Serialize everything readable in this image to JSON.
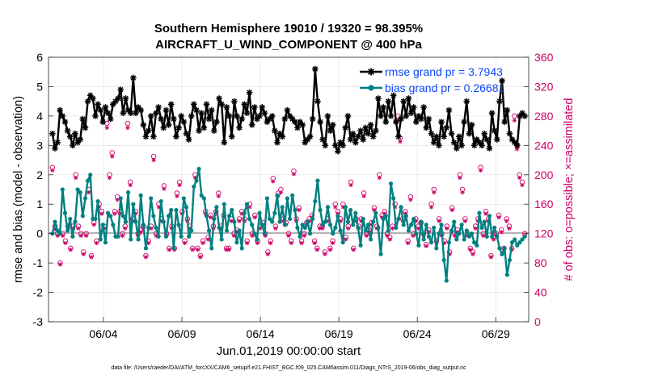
{
  "chart_data": {
    "type": "line",
    "title": "Southern Hemisphere 19010 / 19320 = 98.395%",
    "subtitle": "AIRCRAFT_U_WIND_COMPONENT @ 400 hPa",
    "xlabel": "Jun.01,2019 00:00:00 start",
    "ylabel": "rmse and bias (model - observation)",
    "y2label": "# of obs: o=possible; ×=assimilated",
    "xlim": [
      0,
      30.6
    ],
    "ylim": [
      -3,
      6
    ],
    "y2lim": [
      0,
      360
    ],
    "xtick_values": [
      3.5,
      8.5,
      13.5,
      18.5,
      23.5,
      28.5
    ],
    "xtick_labels": [
      "06/04",
      "06/09",
      "06/14",
      "06/19",
      "06/24",
      "06/29"
    ],
    "ytick_labels": [
      "-3",
      "-2",
      "-1",
      "0",
      "1",
      "2",
      "3",
      "4",
      "5",
      "6"
    ],
    "y2tick_labels": [
      "0",
      "40",
      "80",
      "120",
      "160",
      "200",
      "240",
      "280",
      "320",
      "360"
    ],
    "footnote": "data file: /Users/raeder/DAI/ATM_forcXX/CAM6_setup/f.e21.FHIST_BGC.f09_025.CAM6assim.011/Diags_NTrS_2019-06/obs_diag_output.nc",
    "colors": {
      "rmse": "#000000",
      "bias": "#008080",
      "obs": "#cc0066",
      "zero_line": "#b3b3b3",
      "legend_text": "#0d47ff"
    },
    "series": [
      {
        "name": "rmse grand pr = 3.7943",
        "marker": "asterisk",
        "values": [
          3.4,
          2.9,
          3.1,
          4.2,
          4.0,
          3.8,
          3.5,
          3.3,
          3.0,
          3.4,
          3.1,
          3.2,
          3.9,
          3.6,
          4.5,
          4.7,
          4.6,
          4.0,
          4.4,
          4.2,
          3.8,
          4.3,
          4.1,
          3.9,
          4.4,
          4.5,
          4.6,
          4.9,
          4.1,
          4.6,
          4.2,
          4.1,
          5.3,
          4.1,
          4.3,
          4.2,
          3.7,
          3.3,
          3.5,
          4.0,
          3.3,
          4.1,
          4.3,
          3.9,
          3.6,
          4.2,
          3.7,
          4.4,
          3.9,
          3.3,
          3.6,
          4.0,
          3.8,
          3.4,
          3.2,
          4.0,
          4.4,
          4.2,
          3.5,
          4.1,
          3.6,
          4.4,
          3.9,
          4.2,
          3.5,
          3.8,
          4.6,
          4.4,
          3.1,
          4.3,
          4.0,
          3.3,
          4.5,
          4.0,
          3.6,
          3.9,
          4.4,
          4.1,
          4.8,
          3.7,
          4.3,
          3.9,
          4.0,
          4.3,
          4.1,
          3.8,
          3.9,
          4.0,
          3.5,
          3.1,
          3.4,
          3.3,
          3.9,
          4.2,
          4.0,
          3.9,
          3.8,
          3.6,
          3.8,
          3.7,
          3.1,
          3.2,
          3.3,
          3.9,
          5.6,
          4.5,
          3.8,
          3.2,
          3.0,
          4.0,
          3.5,
          3.7,
          3.0,
          2.8,
          3.1,
          3.0,
          3.6,
          4.0,
          3.2,
          3.4,
          3.1,
          3.3,
          3.5,
          3.2,
          3.6,
          3.4,
          3.7,
          3.3,
          3.5,
          4.6,
          4.0,
          4.3,
          3.8,
          4.5,
          4.0,
          4.7,
          3.8,
          3.3,
          3.9,
          4.5,
          4.0,
          4.6,
          4.1,
          4.3,
          3.8,
          4.0,
          3.9,
          4.3,
          3.6,
          3.9,
          3.4,
          3.1,
          3.3,
          3.0,
          3.8,
          3.3,
          3.6,
          4.2,
          3.4,
          3.1,
          2.9,
          3.3,
          3.0,
          3.8,
          4.5,
          3.4,
          3.7,
          3.0,
          3.2,
          3.1,
          3.0,
          3.4,
          3.2,
          2.9,
          4.1,
          3.5,
          3.2,
          4.5,
          5.2,
          3.8,
          4.2,
          3.4,
          3.2,
          3.1,
          3.0,
          4.0,
          4.1,
          4.0
        ]
      },
      {
        "name": "bias grand pr = 0.26681",
        "marker": "dot",
        "values": [
          0.0,
          0.4,
          0.1,
          0.0,
          1.5,
          0.7,
          0.1,
          0.5,
          -0.1,
          0.4,
          1.5,
          1.4,
          0.6,
          1.2,
          1.8,
          2.0,
          0.5,
          0.5,
          1.1,
          -0.2,
          0.3,
          -0.3,
          0.7,
          0.6,
          0.3,
          -0.1,
          -0.1,
          1.2,
          0.6,
          0.4,
          1.4,
          -0.2,
          1.0,
          0.4,
          -0.2,
          1.3,
          0.3,
          -0.5,
          0.2,
          1.2,
          0.6,
          0.2,
          -0.1,
          1.1,
          0.4,
          -0.1,
          0.6,
          0.8,
          -0.5,
          0.8,
          0.3,
          -0.1,
          1.2,
          0.9,
          -0.1,
          0.1,
          1.6,
          1.8,
          2.2,
          1.3,
          1.2,
          0.6,
          0.1,
          -0.5,
          0.5,
          0.9,
          0.2,
          -0.2,
          1.0,
          0.1,
          0.6,
          0.8,
          0.4,
          -0.3,
          0.1,
          -0.5,
          0.7,
          1.0,
          0.5,
          0.3,
          0.0,
          -0.2,
          0.7,
          0.3,
          0.0,
          1.2,
          0.5,
          0.4,
          0.7,
          1.3,
          0.4,
          0.9,
          0.3,
          1.2,
          0.5,
          1.3,
          0.8,
          0.2,
          -0.1,
          0.3,
          0.2,
          0.4,
          0.0,
          0.5,
          1.1,
          1.8,
          0.8,
          0.3,
          0.4,
          0.9,
          0.3,
          0.0,
          0.2,
          0.6,
          0.1,
          -0.3,
          0.9,
          0.4,
          0.8,
          0.3,
          0.7,
          0.2,
          -0.4,
          0.5,
          0.1,
          0.3,
          -0.2,
          0.4,
          0.7,
          0.2,
          -0.7,
          0.5,
          0.6,
          0.1,
          1.7,
          1.2,
          0.2,
          0.5,
          0.9,
          0.3,
          0.6,
          0.1,
          0.3,
          0.5,
          0.0,
          -0.4,
          0.4,
          -0.2,
          0.3,
          -0.1,
          -0.3,
          0.2,
          -0.5,
          0.0,
          0.3,
          -0.9,
          -1.6,
          -0.3,
          0.1,
          0.4,
          -0.2,
          0.0,
          0.3,
          -0.2,
          0.1,
          -0.1,
          0.0,
          -0.3,
          -0.4,
          0.7,
          0.2,
          0.4,
          -0.1,
          0.6,
          -0.1,
          0.2,
          -0.1,
          -0.5,
          -0.7,
          -0.5,
          -1.4,
          -0.9,
          -0.3,
          -0.2,
          -0.4,
          -0.3,
          -0.2,
          -0.1
        ]
      }
    ],
    "obs_count": {
      "name": "# of obs",
      "possible": [
        210,
        130,
        120,
        80,
        120,
        110,
        130,
        100,
        130,
        200,
        130,
        120,
        95,
        120,
        180,
        90,
        135,
        110,
        160,
        150,
        130,
        270,
        200,
        230,
        150,
        170,
        150,
        120,
        130,
        270,
        190,
        140,
        150,
        120,
        125,
        130,
        90,
        110,
        130,
        225,
        120,
        160,
        140,
        185,
        120,
        100,
        130,
        100,
        175,
        190,
        150,
        110,
        140,
        130,
        100,
        200,
        100,
        90,
        110,
        150,
        115,
        145,
        130,
        150,
        175,
        130,
        145,
        100,
        100,
        140,
        120,
        125,
        140,
        150,
        140,
        110,
        160,
        120,
        145,
        110,
        130,
        135,
        120,
        95,
        110,
        195,
        130,
        175,
        180,
        140,
        135,
        120,
        110,
        205,
        140,
        155,
        110,
        120,
        135,
        140,
        145,
        110,
        100,
        130,
        130,
        95,
        140,
        100,
        110,
        160,
        150,
        140,
        160,
        115,
        130,
        190,
        100,
        140,
        130,
        140,
        175,
        120,
        125,
        135,
        155,
        130,
        200,
        145,
        150,
        120,
        115,
        130,
        160,
        280,
        250,
        140,
        150,
        110,
        170,
        120,
        140,
        130,
        135,
        120,
        105,
        125,
        160,
        180,
        110,
        140,
        120,
        110,
        130,
        95,
        155,
        120,
        125,
        200,
        180,
        140,
        120,
        100,
        95,
        130,
        140,
        210,
        120,
        150,
        140,
        90,
        115,
        120,
        145,
        125,
        100,
        140,
        130,
        100,
        280,
        240,
        200,
        190,
        120
      ],
      "assimilated": [
        206,
        126,
        117,
        78,
        117,
        107,
        127,
        98,
        127,
        196,
        127,
        117,
        92,
        117,
        176,
        88,
        132,
        107,
        156,
        147,
        127,
        264,
        196,
        225,
        147,
        166,
        147,
        117,
        127,
        264,
        186,
        137,
        147,
        117,
        122,
        127,
        88,
        107,
        127,
        220,
        117,
        156,
        137,
        181,
        117,
        98,
        127,
        98,
        171,
        186,
        147,
        107,
        137,
        127,
        98,
        196,
        98,
        88,
        107,
        147,
        112,
        142,
        127,
        147,
        171,
        127,
        142,
        98,
        98,
        137,
        117,
        122,
        137,
        147,
        137,
        107,
        156,
        117,
        142,
        107,
        127,
        132,
        117,
        92,
        107,
        191,
        127,
        171,
        176,
        137,
        132,
        117,
        107,
        201,
        137,
        152,
        107,
        117,
        132,
        137,
        142,
        107,
        98,
        127,
        127,
        92,
        137,
        98,
        107,
        156,
        147,
        137,
        156,
        112,
        127,
        186,
        98,
        137,
        127,
        137,
        171,
        117,
        122,
        132,
        152,
        127,
        196,
        142,
        147,
        117,
        112,
        127,
        156,
        274,
        245,
        137,
        147,
        107,
        166,
        117,
        137,
        127,
        132,
        117,
        103,
        122,
        156,
        176,
        107,
        137,
        117,
        107,
        127,
        92,
        152,
        117,
        122,
        196,
        176,
        137,
        117,
        98,
        92,
        127,
        137,
        206,
        117,
        147,
        137,
        88,
        112,
        117,
        142,
        122,
        98,
        137,
        127,
        98,
        274,
        235,
        196,
        186,
        117
      ]
    }
  }
}
